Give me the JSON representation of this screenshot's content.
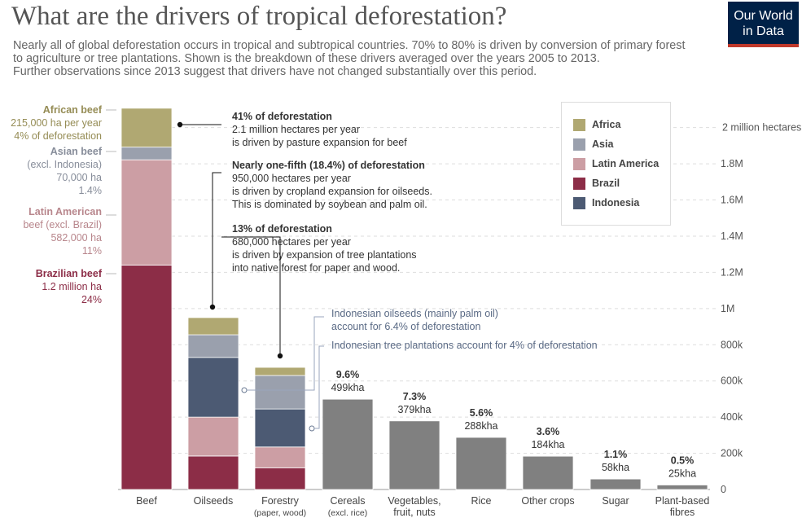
{
  "header": {
    "title": "What are the drivers of tropical deforestation?",
    "subtitle_lines": [
      "Nearly all of global deforestation occurs in tropical and subtropical countries. 70% to 80% is driven by conversion of primary forest",
      "to agriculture or tree plantations. Shown is the breakdown of these drivers averaged over the years 2005 to 2013.",
      "Further observations  since 2013 suggest that drivers have not changed substantially over this period."
    ],
    "logo_line1": "Our World",
    "logo_line2": "in Data"
  },
  "colors": {
    "Africa": "#b0a872",
    "Asia": "#9aa0ad",
    "Latin America": "#cc9ea4",
    "Brazil": "#8c2d47",
    "Indonesia": "#4c5a73",
    "Total": "#808080"
  },
  "legend": {
    "items": [
      {
        "label": "Africa",
        "color": "#b0a872"
      },
      {
        "label": "Asia",
        "color": "#9aa0ad"
      },
      {
        "label": "Latin America",
        "color": "#cc9ea4"
      },
      {
        "label": "Brazil",
        "color": "#8c2d47"
      },
      {
        "label": "Indonesia",
        "color": "#4c5a73"
      }
    ]
  },
  "beef_labels": [
    {
      "lines": [
        "African beef",
        "215,000 ha per year",
        "4% of deforestation"
      ],
      "color": "#958c55"
    },
    {
      "lines": [
        "Asian beef",
        "(excl. Indonesia)",
        "70,000 ha",
        "1.4%"
      ],
      "color": "#878d9a"
    },
    {
      "lines": [
        "Latin American",
        "beef (excl. Brazil)",
        "582,000 ha",
        "11%"
      ],
      "color": "#b8868c"
    },
    {
      "lines": [
        "Brazilian beef",
        "1.2 million ha",
        "24%"
      ],
      "color": "#8c2d47"
    }
  ],
  "annotations": [
    {
      "lines": [
        "41% of deforestation",
        "2.1 million hectares per year",
        "is driven by pasture expansion for beef"
      ]
    },
    {
      "lines": [
        "Nearly one-fifth (18.4%) of deforestation",
        "950,000 hectares per year",
        "is driven by cropland expansion for oilseeds.",
        "This is dominated by soybean and palm oil."
      ]
    },
    {
      "lines": [
        "13% of deforestation",
        "680,000 hectares per year",
        "is driven by expansion of tree plantations",
        "into native forest for paper and wood."
      ]
    },
    {
      "lines": [
        "Indonesian oilseeds (mainly palm oil)",
        "account for 6.4% of deforestation"
      ]
    },
    {
      "lines": [
        "Indonesian tree plantations account for 4% of deforestation"
      ]
    }
  ],
  "chart_data": {
    "type": "bar",
    "stacked": true,
    "categories": [
      {
        "lines": [
          "Beef"
        ]
      },
      {
        "lines": [
          "Oilseeds"
        ]
      },
      {
        "lines": [
          "Forestry",
          "(paper, wood)"
        ]
      },
      {
        "lines": [
          "Cereals",
          "(excl. rice)"
        ]
      },
      {
        "lines": [
          "Vegetables,",
          "fruit, nuts"
        ]
      },
      {
        "lines": [
          "Rice"
        ]
      },
      {
        "lines": [
          "Other crops"
        ]
      },
      {
        "lines": [
          "Sugar"
        ]
      },
      {
        "lines": [
          "Plant-based",
          "fibres"
        ]
      }
    ],
    "stacks": [
      [
        [
          "Brazil",
          1240000
        ],
        [
          "Latin America",
          582000
        ],
        [
          "Asia",
          70000
        ],
        [
          "Africa",
          215000
        ]
      ],
      [
        [
          "Brazil",
          185000
        ],
        [
          "Latin America",
          215000
        ],
        [
          "Indonesia",
          330000
        ],
        [
          "Asia",
          125000
        ],
        [
          "Africa",
          95000
        ]
      ],
      [
        [
          "Brazil",
          120000
        ],
        [
          "Latin America",
          115000
        ],
        [
          "Indonesia",
          210000
        ],
        [
          "Asia",
          185000
        ],
        [
          "Africa",
          45000
        ]
      ],
      [
        [
          "Total",
          499000
        ]
      ],
      [
        [
          "Total",
          379000
        ]
      ],
      [
        [
          "Total",
          288000
        ]
      ],
      [
        [
          "Total",
          184000
        ]
      ],
      [
        [
          "Total",
          58000
        ]
      ],
      [
        [
          "Total",
          25000
        ]
      ]
    ],
    "value_labels": [
      null,
      null,
      null,
      {
        "pct": "9.6%",
        "amount": "499kha"
      },
      {
        "pct": "7.3%",
        "amount": "379kha"
      },
      {
        "pct": "5.6%",
        "amount": "288kha"
      },
      {
        "pct": "3.6%",
        "amount": "184kha"
      },
      {
        "pct": "1.1%",
        "amount": "58kha"
      },
      {
        "pct": "0.5%",
        "amount": "25kha"
      }
    ],
    "y_ticks": [
      {
        "value": 0,
        "label": "0"
      },
      {
        "value": 200000,
        "label": "200k"
      },
      {
        "value": 400000,
        "label": "400k"
      },
      {
        "value": 600000,
        "label": "600k"
      },
      {
        "value": 800000,
        "label": "800k"
      },
      {
        "value": 1000000,
        "label": "1M"
      },
      {
        "value": 1200000,
        "label": "1.2M"
      },
      {
        "value": 1400000,
        "label": "1.4M"
      },
      {
        "value": 1600000,
        "label": "1.6M"
      },
      {
        "value": 1800000,
        "label": "1.8M"
      },
      {
        "value": 2000000,
        "label": "2 million hectares"
      }
    ],
    "ylim": [
      0,
      2120000
    ],
    "grid": true,
    "legend_position": "top-right"
  }
}
